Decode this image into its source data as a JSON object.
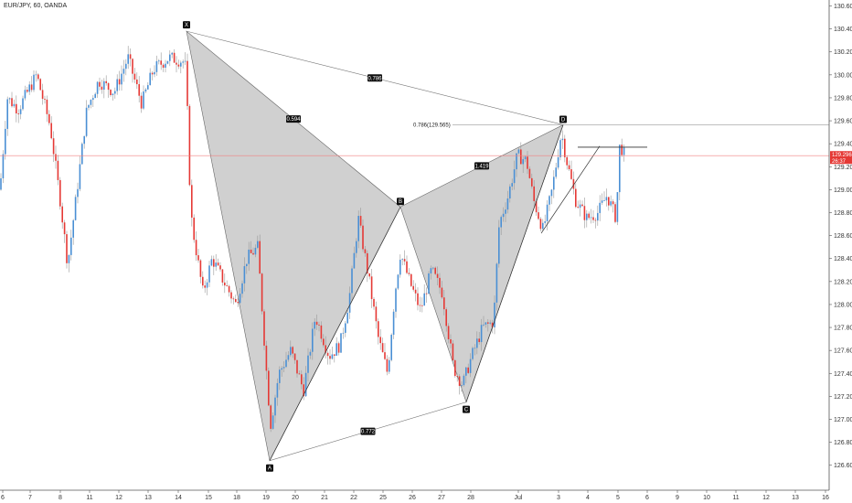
{
  "header": {
    "symbol": "EUR/JPY, 60, OANDA"
  },
  "chart_data": {
    "type": "candlestick",
    "yaxis": {
      "min": 126.55,
      "max": 130.62,
      "ticks": [
        "130.600",
        "130.400",
        "130.200",
        "130.000",
        "129.800",
        "129.600",
        "129.400",
        "129.200",
        "129.000",
        "128.800",
        "128.600",
        "128.400",
        "128.200",
        "128.000",
        "127.800",
        "127.600",
        "127.400",
        "127.200",
        "127.000",
        "126.800",
        "126.600"
      ]
    },
    "xaxis": {
      "ticks": [
        "6",
        "7",
        "8",
        "11",
        "12",
        "13",
        "14",
        "15",
        "18",
        "19",
        "20",
        "21",
        "22",
        "25",
        "26",
        "27",
        "28",
        "Jul",
        "3",
        "4",
        "5",
        "6",
        "9",
        "10",
        "11",
        "12",
        "13",
        "16"
      ]
    },
    "current_price": {
      "value": 129.296,
      "label": "129.296",
      "timer": "26:37"
    },
    "pattern": {
      "points": [
        {
          "name": "X",
          "price": 130.38
        },
        {
          "name": "A",
          "price": 126.64
        },
        {
          "name": "B",
          "price": 128.85
        },
        {
          "name": "C",
          "price": 127.15
        },
        {
          "name": "D",
          "price": 129.565
        }
      ],
      "ratios": [
        {
          "label": "0.786",
          "between": "X-D"
        },
        {
          "label": "0.594",
          "between": "X-B"
        },
        {
          "label": "1.419",
          "between": "B-D"
        },
        {
          "label": "0.772",
          "between": "A-C"
        }
      ],
      "target_level": {
        "price": 129.565,
        "label": "0.786(129.565)"
      }
    },
    "trend_line": {
      "price": 129.37
    },
    "colors": {
      "up": "#4a8fd4",
      "down": "#e53935",
      "wick": "#999999",
      "pattern_fill": "#c8c8c8",
      "price_line": "#f08080"
    }
  }
}
